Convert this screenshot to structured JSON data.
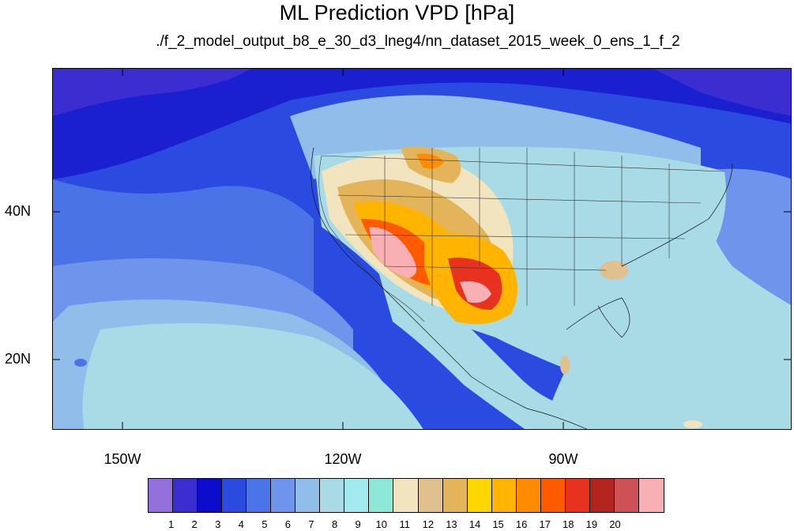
{
  "title": "ML Prediction VPD [hPa]",
  "subtitle": "./f_2_model_output_b8_e_30_d3_lneg4/nn_dataset_2015_week_0_ens_1_f_2",
  "map": {
    "variable": "VPD",
    "units": "hPa",
    "lat_labels": [
      "40N",
      "20N"
    ],
    "lon_labels": [
      "150W",
      "120W",
      "90W"
    ],
    "colors": {
      "ocean_deep": "#1a1fd0",
      "ocean_mid": "#4a73e6",
      "ocean_light": "#8fb4ec",
      "land_base": "#a9dbe6",
      "hot_core": "#f9b0b5"
    }
  },
  "colorbar": {
    "colors": [
      "#9370db",
      "#3c2dd1",
      "#0c0ccd",
      "#2b4be0",
      "#4a74e8",
      "#6f94ec",
      "#90bdea",
      "#a9dbe6",
      "#a2eaf0",
      "#8de8d7",
      "#f2e4bf",
      "#dfc08e",
      "#e4b45a",
      "#ffd700",
      "#ffb400",
      "#ff8c00",
      "#ff5a00",
      "#e6321e",
      "#b4241f",
      "#cd5155",
      "#f9b0b5"
    ],
    "labels": [
      "1",
      "2",
      "3",
      "4",
      "5",
      "6",
      "7",
      "8",
      "9",
      "10",
      "11",
      "12",
      "13",
      "14",
      "15",
      "16",
      "17",
      "18",
      "19",
      "20"
    ]
  }
}
